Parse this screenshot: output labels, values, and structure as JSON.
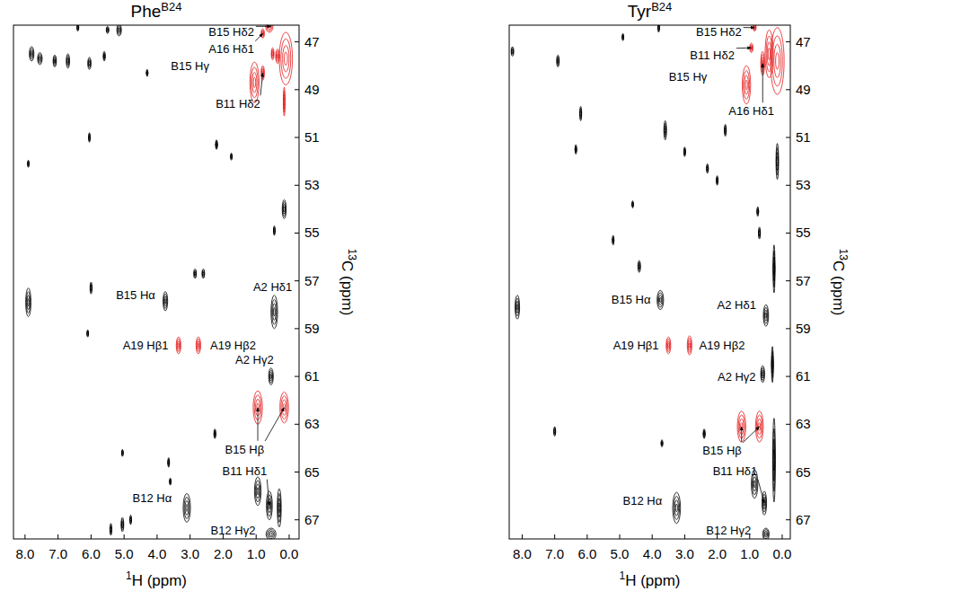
{
  "chart_data": [
    {
      "type": "scatter",
      "title": {
        "text": "Phe",
        "superscript": "B24"
      },
      "xlabel": {
        "superscript": "1",
        "text": "H (ppm)"
      },
      "ylabel": {
        "superscript": "13",
        "text": "C (ppm)"
      },
      "xlim": [
        8.35,
        -0.3
      ],
      "ylim": [
        46.3,
        67.8
      ],
      "xticks": [
        {
          "value": 8,
          "label": "8.0"
        },
        {
          "value": 7,
          "label": "7.0"
        },
        {
          "value": 6,
          "label": "6.0"
        },
        {
          "value": 5,
          "label": "5.0"
        },
        {
          "value": 4,
          "label": "4.0"
        },
        {
          "value": 3,
          "label": "3.0"
        },
        {
          "value": 2,
          "label": "2.0"
        },
        {
          "value": 1,
          "label": "1.0"
        },
        {
          "value": 0,
          "label": "0.0"
        }
      ],
      "yticks": [
        47,
        49,
        51,
        53,
        55,
        57,
        59,
        61,
        63,
        65,
        67
      ],
      "series": [
        {
          "color": "#e41a1c",
          "x": [
            0.1,
            0.35,
            1.05,
            0.8,
            0.6,
            0.8,
            0.5,
            3.35,
            2.75,
            0.95,
            0.15,
            0.15
          ],
          "values": [
            47.7,
            47.6,
            48.7,
            48.3,
            46.35,
            46.65,
            47.5,
            59.7,
            59.7,
            62.3,
            62.3,
            49.5
          ],
          "widths": [
            0.4,
            0.12,
            0.28,
            0.1,
            0.22,
            0.1,
            0.08,
            0.14,
            0.14,
            0.28,
            0.26,
            0.05
          ],
          "heights": [
            2.2,
            0.6,
            1.7,
            0.6,
            0.5,
            0.4,
            0.5,
            0.7,
            0.7,
            1.4,
            1.3,
            1.2
          ]
        },
        {
          "color": "#000000",
          "x": [
            3.75,
            0.45,
            0.55,
            3.1,
            0.6,
            0.55,
            0.95,
            0.3,
            7.9,
            7.8,
            7.55,
            7.1,
            6.7,
            6.05,
            5.6,
            5.5,
            5.15,
            6.0,
            6.1,
            6.05,
            7.9,
            2.2,
            1.75,
            2.85,
            2.6,
            0.15,
            0.45,
            5.05,
            5.4,
            4.8,
            3.65,
            4.3,
            6.4,
            5.05,
            2.25,
            3.6
          ],
          "values": [
            57.85,
            58.3,
            61.0,
            66.5,
            66.4,
            67.6,
            65.8,
            66.5,
            57.9,
            47.5,
            47.7,
            47.8,
            47.8,
            47.9,
            47.6,
            46.5,
            46.5,
            57.3,
            59.2,
            51.0,
            52.1,
            51.3,
            51.8,
            56.7,
            56.7,
            54.0,
            54.9,
            67.2,
            67.4,
            67.0,
            64.6,
            48.3,
            46.4,
            64.2,
            63.4,
            65.4
          ],
          "widths": [
            0.14,
            0.2,
            0.14,
            0.22,
            0.18,
            0.3,
            0.2,
            0.12,
            0.16,
            0.14,
            0.14,
            0.1,
            0.1,
            0.1,
            0.06,
            0.08,
            0.14,
            0.06,
            0.05,
            0.05,
            0.05,
            0.06,
            0.05,
            0.08,
            0.08,
            0.12,
            0.05,
            0.08,
            0.06,
            0.05,
            0.05,
            0.04,
            0.06,
            0.05,
            0.06,
            0.04
          ],
          "heights": [
            0.8,
            1.4,
            0.7,
            1.2,
            1.2,
            0.5,
            1.2,
            1.6,
            1.2,
            0.6,
            0.5,
            0.5,
            0.6,
            0.5,
            0.4,
            0.3,
            0.5,
            0.5,
            0.3,
            0.4,
            0.3,
            0.4,
            0.3,
            0.4,
            0.4,
            0.8,
            0.4,
            0.6,
            0.5,
            0.4,
            0.4,
            0.3,
            0.3,
            0.3,
            0.4,
            0.3
          ]
        }
      ],
      "annotations": [
        {
          "text": "B15 Hδ2",
          "label_x": 1.75,
          "label_y": 46.6,
          "targets": [
            [
              0.55,
              46.35
            ]
          ]
        },
        {
          "text": "A16 Hδ1",
          "label_x": 1.75,
          "label_y": 47.3,
          "targets": [
            [
              0.8,
              46.65
            ]
          ]
        },
        {
          "text": "B15 Hγ",
          "label_x": 3.0,
          "label_y": 48.0,
          "targets": []
        },
        {
          "text": "B11 Hδ2",
          "label_x": 1.55,
          "label_y": 49.6,
          "targets": [
            [
              0.8,
              48.3
            ]
          ]
        },
        {
          "text": "B15 Hα",
          "label_x": 4.65,
          "label_y": 57.6,
          "targets": []
        },
        {
          "text": "A2 Hδ1",
          "label_x": 0.5,
          "label_y": 57.25,
          "targets": []
        },
        {
          "text": "A19 Hβ1",
          "label_x": 4.35,
          "label_y": 59.7,
          "targets": []
        },
        {
          "text": "A19 Hβ2",
          "label_x": 1.7,
          "label_y": 59.7,
          "targets": []
        },
        {
          "text": "A2 Hγ2",
          "label_x": 1.05,
          "label_y": 60.3,
          "targets": []
        },
        {
          "text": "B15 Hβ",
          "label_x": 1.35,
          "label_y": 64.05,
          "targets": [
            [
              0.95,
              62.3
            ],
            [
              0.15,
              62.3
            ]
          ]
        },
        {
          "text": "B11 Hδ1",
          "label_x": 1.35,
          "label_y": 64.95,
          "targets": [
            [
              0.6,
              66.4
            ]
          ]
        },
        {
          "text": "B12 Hα",
          "label_x": 4.15,
          "label_y": 66.1,
          "targets": []
        },
        {
          "text": "B12 Hγ2",
          "label_x": 1.7,
          "label_y": 67.45,
          "targets": []
        }
      ]
    },
    {
      "type": "scatter",
      "title": {
        "text": "Tyr",
        "superscript": "B24"
      },
      "xlabel": {
        "superscript": "1",
        "text": "H (ppm)"
      },
      "ylabel": {
        "superscript": "13",
        "text": "C (ppm)"
      },
      "xlim": [
        8.4,
        -0.25
      ],
      "ylim": [
        46.3,
        67.8
      ],
      "xticks": [
        {
          "value": 8,
          "label": "8.0"
        },
        {
          "value": 7,
          "label": "7.0"
        },
        {
          "value": 6,
          "label": "6.0"
        },
        {
          "value": 5,
          "label": "5.0"
        },
        {
          "value": 4,
          "label": "4.0"
        },
        {
          "value": 3,
          "label": "3.0"
        },
        {
          "value": 2,
          "label": "2.0"
        },
        {
          "value": 1,
          "label": "1.0"
        },
        {
          "value": 0,
          "label": "0.0"
        }
      ],
      "yticks": [
        47,
        49,
        51,
        53,
        55,
        57,
        59,
        61,
        63,
        65,
        67
      ],
      "series": [
        {
          "color": "#e41a1c",
          "x": [
            0.15,
            0.4,
            1.1,
            0.95,
            0.6,
            0.85,
            3.5,
            2.85,
            1.25,
            0.7
          ],
          "values": [
            47.8,
            47.5,
            48.8,
            47.25,
            47.9,
            46.4,
            59.7,
            59.7,
            63.1,
            63.1
          ],
          "widths": [
            0.42,
            0.25,
            0.26,
            0.1,
            0.12,
            0.1,
            0.14,
            0.14,
            0.26,
            0.24
          ],
          "heights": [
            2.8,
            2.0,
            1.6,
            0.4,
            1.0,
            0.3,
            0.7,
            0.8,
            1.3,
            1.3
          ]
        },
        {
          "color": "#000000",
          "x": [
            3.75,
            0.5,
            0.6,
            3.25,
            0.55,
            0.5,
            0.85,
            0.25,
            0.3,
            0.25,
            8.15,
            8.3,
            6.9,
            6.2,
            6.35,
            4.9,
            3.8,
            3.6,
            3.0,
            2.3,
            2.0,
            4.4,
            5.2,
            7.0,
            0.7,
            0.75,
            0.15,
            2.4,
            4.6,
            1.75,
            3.7
          ],
          "values": [
            57.8,
            58.45,
            60.9,
            66.5,
            66.3,
            67.6,
            65.5,
            64.5,
            60.5,
            56.5,
            58.1,
            47.4,
            47.8,
            50.0,
            51.5,
            46.8,
            46.4,
            50.7,
            51.6,
            52.3,
            52.8,
            56.4,
            55.3,
            63.3,
            55.0,
            54.1,
            52.0,
            63.4,
            53.8,
            50.7,
            63.8
          ],
          "widths": [
            0.2,
            0.16,
            0.12,
            0.24,
            0.14,
            0.2,
            0.2,
            0.08,
            0.06,
            0.06,
            0.14,
            0.08,
            0.08,
            0.06,
            0.05,
            0.05,
            0.05,
            0.08,
            0.05,
            0.06,
            0.05,
            0.08,
            0.05,
            0.06,
            0.06,
            0.05,
            0.08,
            0.06,
            0.04,
            0.06,
            0.05
          ],
          "heights": [
            0.8,
            0.9,
            0.7,
            1.3,
            1.0,
            0.5,
            1.2,
            3.5,
            1.5,
            2.0,
            1.0,
            0.4,
            0.5,
            0.6,
            0.4,
            0.3,
            0.4,
            0.8,
            0.4,
            0.4,
            0.4,
            0.5,
            0.4,
            0.4,
            0.5,
            0.4,
            1.5,
            0.4,
            0.3,
            0.5,
            0.3
          ]
        }
      ],
      "annotations": [
        {
          "text": "B15 Hδ2",
          "label_x": 1.95,
          "label_y": 46.6,
          "targets": [
            [
              0.85,
              46.4
            ]
          ]
        },
        {
          "text": "B11 Hδ2",
          "label_x": 2.15,
          "label_y": 47.55,
          "targets": [
            [
              0.95,
              47.25
            ]
          ]
        },
        {
          "text": "B15 Hγ",
          "label_x": 2.9,
          "label_y": 48.45,
          "targets": []
        },
        {
          "text": "A16 Hδ1",
          "label_x": 0.95,
          "label_y": 49.9,
          "targets": [
            [
              0.6,
              47.9
            ]
          ]
        },
        {
          "text": "B15 Hα",
          "label_x": 4.65,
          "label_y": 57.8,
          "targets": []
        },
        {
          "text": "A2 Hδ1",
          "label_x": 1.4,
          "label_y": 58.0,
          "targets": []
        },
        {
          "text": "A19 Hβ1",
          "label_x": 4.5,
          "label_y": 59.7,
          "targets": []
        },
        {
          "text": "A19 Hβ2",
          "label_x": 1.85,
          "label_y": 59.7,
          "targets": []
        },
        {
          "text": "A2 Hγ2",
          "label_x": 1.4,
          "label_y": 61.0,
          "targets": []
        },
        {
          "text": "B15 Hβ",
          "label_x": 1.85,
          "label_y": 64.1,
          "targets": [
            [
              1.25,
              63.1
            ],
            [
              0.7,
              63.1
            ]
          ]
        },
        {
          "text": "B11 Hδ1",
          "label_x": 1.45,
          "label_y": 64.95,
          "targets": [
            [
              0.55,
              66.3
            ]
          ]
        },
        {
          "text": "B12 Hα",
          "label_x": 4.3,
          "label_y": 66.2,
          "targets": []
        },
        {
          "text": "B12 Hγ2",
          "label_x": 1.65,
          "label_y": 67.45,
          "targets": []
        }
      ]
    }
  ]
}
